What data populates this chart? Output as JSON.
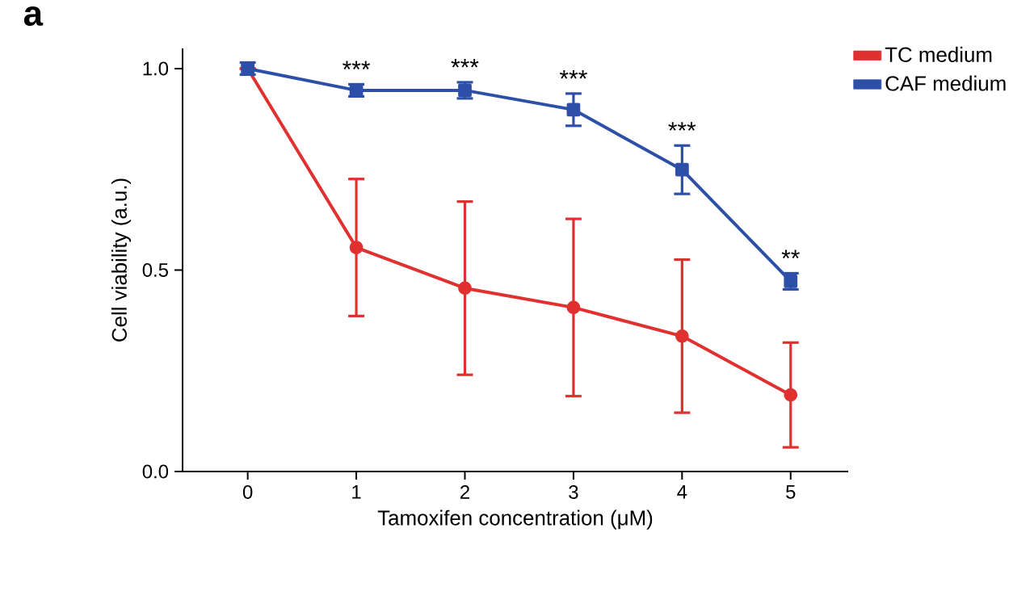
{
  "chart_data": {
    "type": "line",
    "xlabel": "Tamoxifen concentration (μM)",
    "ylabel": "Cell viability (a.u.)",
    "x": [
      0,
      1,
      2,
      3,
      4,
      5
    ],
    "xlim": [
      -0.6,
      5.53
    ],
    "xticks": [
      0,
      1,
      2,
      3,
      4,
      5
    ],
    "ylim": [
      0,
      1.05
    ],
    "yticks": [
      {
        "value": 0,
        "label": "0.0"
      },
      {
        "value": 0.5,
        "label": "0.5"
      },
      {
        "value": 1,
        "label": "1.0"
      }
    ],
    "legend": "top right",
    "grid": false,
    "series": [
      {
        "name": "TC medium",
        "color": "#e03030",
        "marker": "circle",
        "values": [
          1.0,
          0.556,
          0.455,
          0.407,
          0.336,
          0.19
        ],
        "errors": [
          null,
          0.17,
          0.215,
          0.22,
          0.19,
          0.13
        ]
      },
      {
        "name": "CAF medium",
        "color": "#2e4fa8",
        "marker": "square",
        "values": [
          1.0,
          0.946,
          0.946,
          0.898,
          0.749,
          0.472
        ],
        "errors": [
          0.015,
          0.015,
          0.02,
          0.04,
          0.06,
          0.02
        ]
      }
    ],
    "annotations": [
      "a",
      "***",
      "***",
      "***",
      "***",
      "**"
    ]
  }
}
